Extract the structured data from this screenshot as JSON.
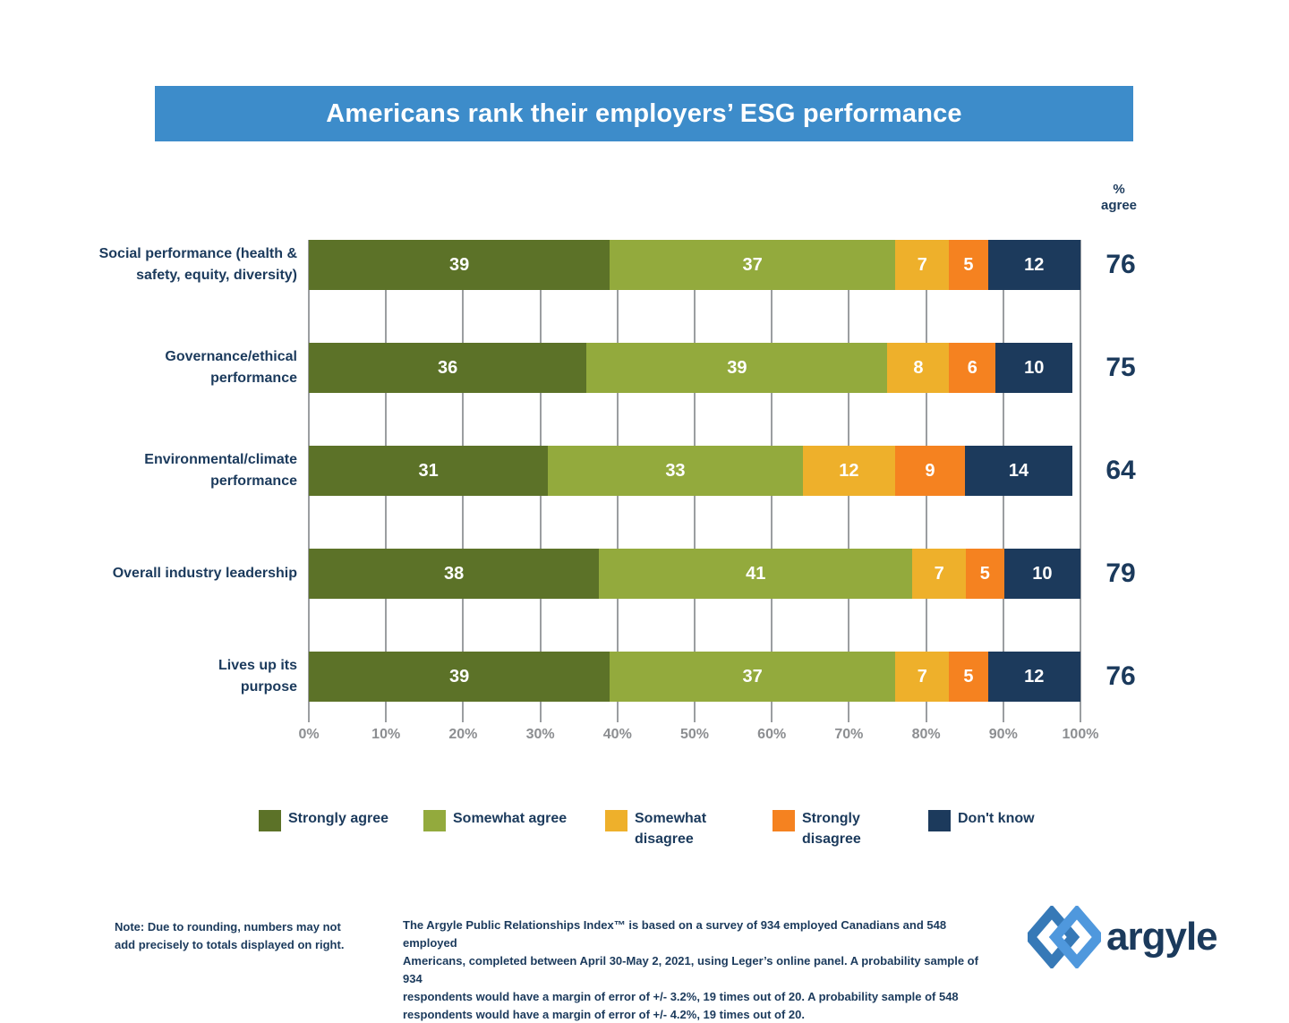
{
  "title": "Americans rank their employers’ ESG performance",
  "chart_data": {
    "type": "bar",
    "stacked": true,
    "orientation": "horizontal",
    "title": "Americans rank their employers’ ESG performance",
    "categories": [
      "Social performance (health & safety, equity, diversity)",
      "Governance/ethical performance",
      "Environmental/climate performance",
      "Overall industry leadership",
      "Lives up its purpose"
    ],
    "category_label_lines": [
      [
        "Social performance (health &",
        "safety, equity, diversity)"
      ],
      [
        "Governance/ethical",
        "performance"
      ],
      [
        "Environmental/climate",
        "performance"
      ],
      [
        "Overall industry leadership"
      ],
      [
        "Lives up its",
        "purpose"
      ]
    ],
    "series": [
      {
        "name": "Strongly agree",
        "color": "#5c7228",
        "values": [
          39,
          36,
          31,
          38,
          39
        ]
      },
      {
        "name": "Somewhat agree",
        "color": "#93aa3d",
        "values": [
          37,
          39,
          33,
          41,
          37
        ]
      },
      {
        "name": "Somewhat disagree",
        "color": "#eeb02b",
        "values": [
          7,
          8,
          12,
          7,
          7
        ]
      },
      {
        "name": "Strongly disagree",
        "color": "#f58220",
        "values": [
          5,
          6,
          9,
          5,
          5
        ]
      },
      {
        "name": "Don't know",
        "color": "#1c3a5c",
        "values": [
          12,
          10,
          14,
          10,
          12
        ]
      }
    ],
    "pct_agree": {
      "header": [
        "%",
        "agree"
      ],
      "values": [
        76,
        75,
        64,
        79,
        76
      ]
    },
    "x_ticks": [
      "0%",
      "10%",
      "20%",
      "30%",
      "40%",
      "50%",
      "60%",
      "70%",
      "80%",
      "90%",
      "100%"
    ],
    "xlim": [
      0,
      100
    ],
    "grid": true,
    "legend_position": "bottom"
  },
  "legend_lines": [
    [
      "Strongly agree"
    ],
    [
      "Somewhat agree"
    ],
    [
      "Somewhat",
      "disagree"
    ],
    [
      "Strongly",
      "disagree"
    ],
    [
      "Don't know"
    ]
  ],
  "notes": {
    "left_lines": [
      "Note: Due to rounding, numbers may not",
      "add precisely to totals displayed on right."
    ],
    "center_lines": [
      "The Argyle Public Relationships Index™ is based on a survey of 934 employed Canadians and 548 employed",
      "Americans, completed between April 30-May 2, 2021, using Leger’s online panel. A probability sample of 934",
      "respondents would have a margin of error of +/- 3.2%, 19 times out of 20. A probability sample of 548",
      "respondents would have a margin of error of +/- 4.2%, 19 times out of 20."
    ]
  },
  "logo": {
    "wordmark": "argyle"
  },
  "colors": {
    "banner": "#3d8cca",
    "navy_text": "#1b3a5c",
    "gridline": "#9b9ea1",
    "tick_label": "#8c8e91",
    "logo_diamond_left": "#3679b7",
    "logo_diamond_right": "#4f98dd"
  }
}
